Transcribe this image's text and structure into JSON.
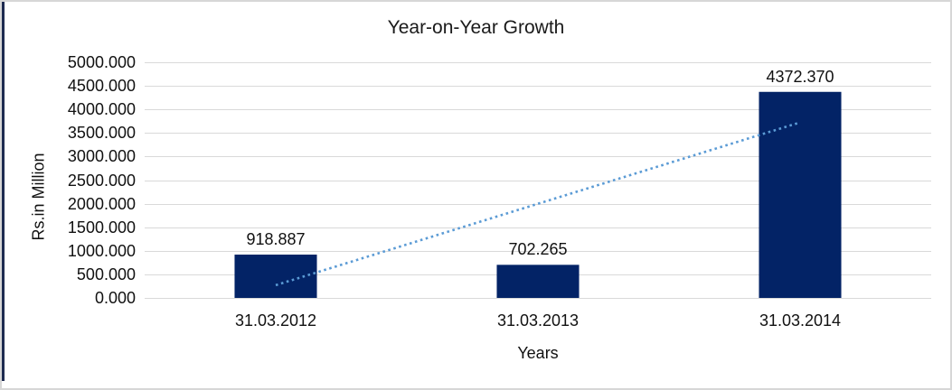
{
  "frame": {
    "border_color": "#d7d7d7",
    "left_accent_color": "#1e2b50",
    "background": "#ffffff"
  },
  "chart_data": {
    "type": "bar",
    "title": "Year-on-Year Growth",
    "xlabel": "Years",
    "ylabel": "Rs.in Million",
    "categories": [
      "31.03.2012",
      "31.03.2013",
      "31.03.2014"
    ],
    "values": [
      918.887,
      702.265,
      4372.37
    ],
    "data_labels": [
      "918.887",
      "702.265",
      "4372.370"
    ],
    "ylim": [
      0,
      5000
    ],
    "ytick_step": 500,
    "ytick_labels": [
      "0.000",
      "500.000",
      "1000.000",
      "1500.000",
      "2000.000",
      "2500.000",
      "3000.000",
      "3500.000",
      "4000.000",
      "4500.000",
      "5000.000"
    ],
    "grid": true,
    "legend": "none",
    "gridline_color": "#d9d9d9",
    "bar_color": "#032366",
    "text_color": "#111111",
    "trendline": {
      "kind": "linear",
      "style": "dotted",
      "color": "#5b9bd5",
      "start_value": 271.1,
      "end_value": 3724.6
    }
  }
}
